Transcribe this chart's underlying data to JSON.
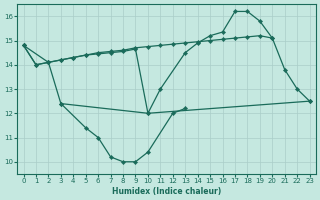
{
  "xlabel": "Humidex (Indice chaleur)",
  "xlim": [
    -0.5,
    23.5
  ],
  "ylim": [
    9.5,
    16.5
  ],
  "yticks": [
    10,
    11,
    12,
    13,
    14,
    15,
    16
  ],
  "xticks": [
    0,
    1,
    2,
    3,
    4,
    5,
    6,
    7,
    8,
    9,
    10,
    11,
    12,
    13,
    14,
    15,
    16,
    17,
    18,
    19,
    20,
    21,
    22,
    23
  ],
  "bg_color": "#c5e8e0",
  "grid_color": "#aacec8",
  "line_color": "#1a6b5a",
  "curve1_x": [
    0,
    1,
    2,
    3,
    5,
    6,
    7,
    8,
    9,
    10,
    12,
    13
  ],
  "curve1_y": [
    14.8,
    14.0,
    14.1,
    12.4,
    11.4,
    11.0,
    10.2,
    10.0,
    10.0,
    10.4,
    12.0,
    12.2
  ],
  "curve2_x": [
    3,
    10,
    23
  ],
  "curve2_y": [
    12.4,
    12.0,
    12.5
  ],
  "curve3_x": [
    0,
    1,
    2,
    3,
    4,
    5,
    6,
    7,
    8,
    9,
    10,
    11,
    13,
    14,
    15,
    16,
    17,
    18,
    19,
    20,
    21,
    22,
    23
  ],
  "curve3_y": [
    14.8,
    14.0,
    14.1,
    14.2,
    14.3,
    14.4,
    14.45,
    14.5,
    14.55,
    14.65,
    12.0,
    13.0,
    14.5,
    14.9,
    15.2,
    15.35,
    16.2,
    16.2,
    15.8,
    15.1,
    13.8,
    13.0,
    12.5
  ],
  "curve4_x": [
    0,
    2,
    3,
    4,
    5,
    6,
    7,
    8,
    9,
    10,
    11,
    12,
    13,
    14,
    15,
    16,
    17,
    18,
    19,
    20
  ],
  "curve4_y": [
    14.8,
    14.1,
    14.2,
    14.3,
    14.4,
    14.5,
    14.55,
    14.6,
    14.7,
    14.75,
    14.8,
    14.85,
    14.9,
    14.95,
    15.0,
    15.05,
    15.1,
    15.15,
    15.2,
    15.1
  ]
}
